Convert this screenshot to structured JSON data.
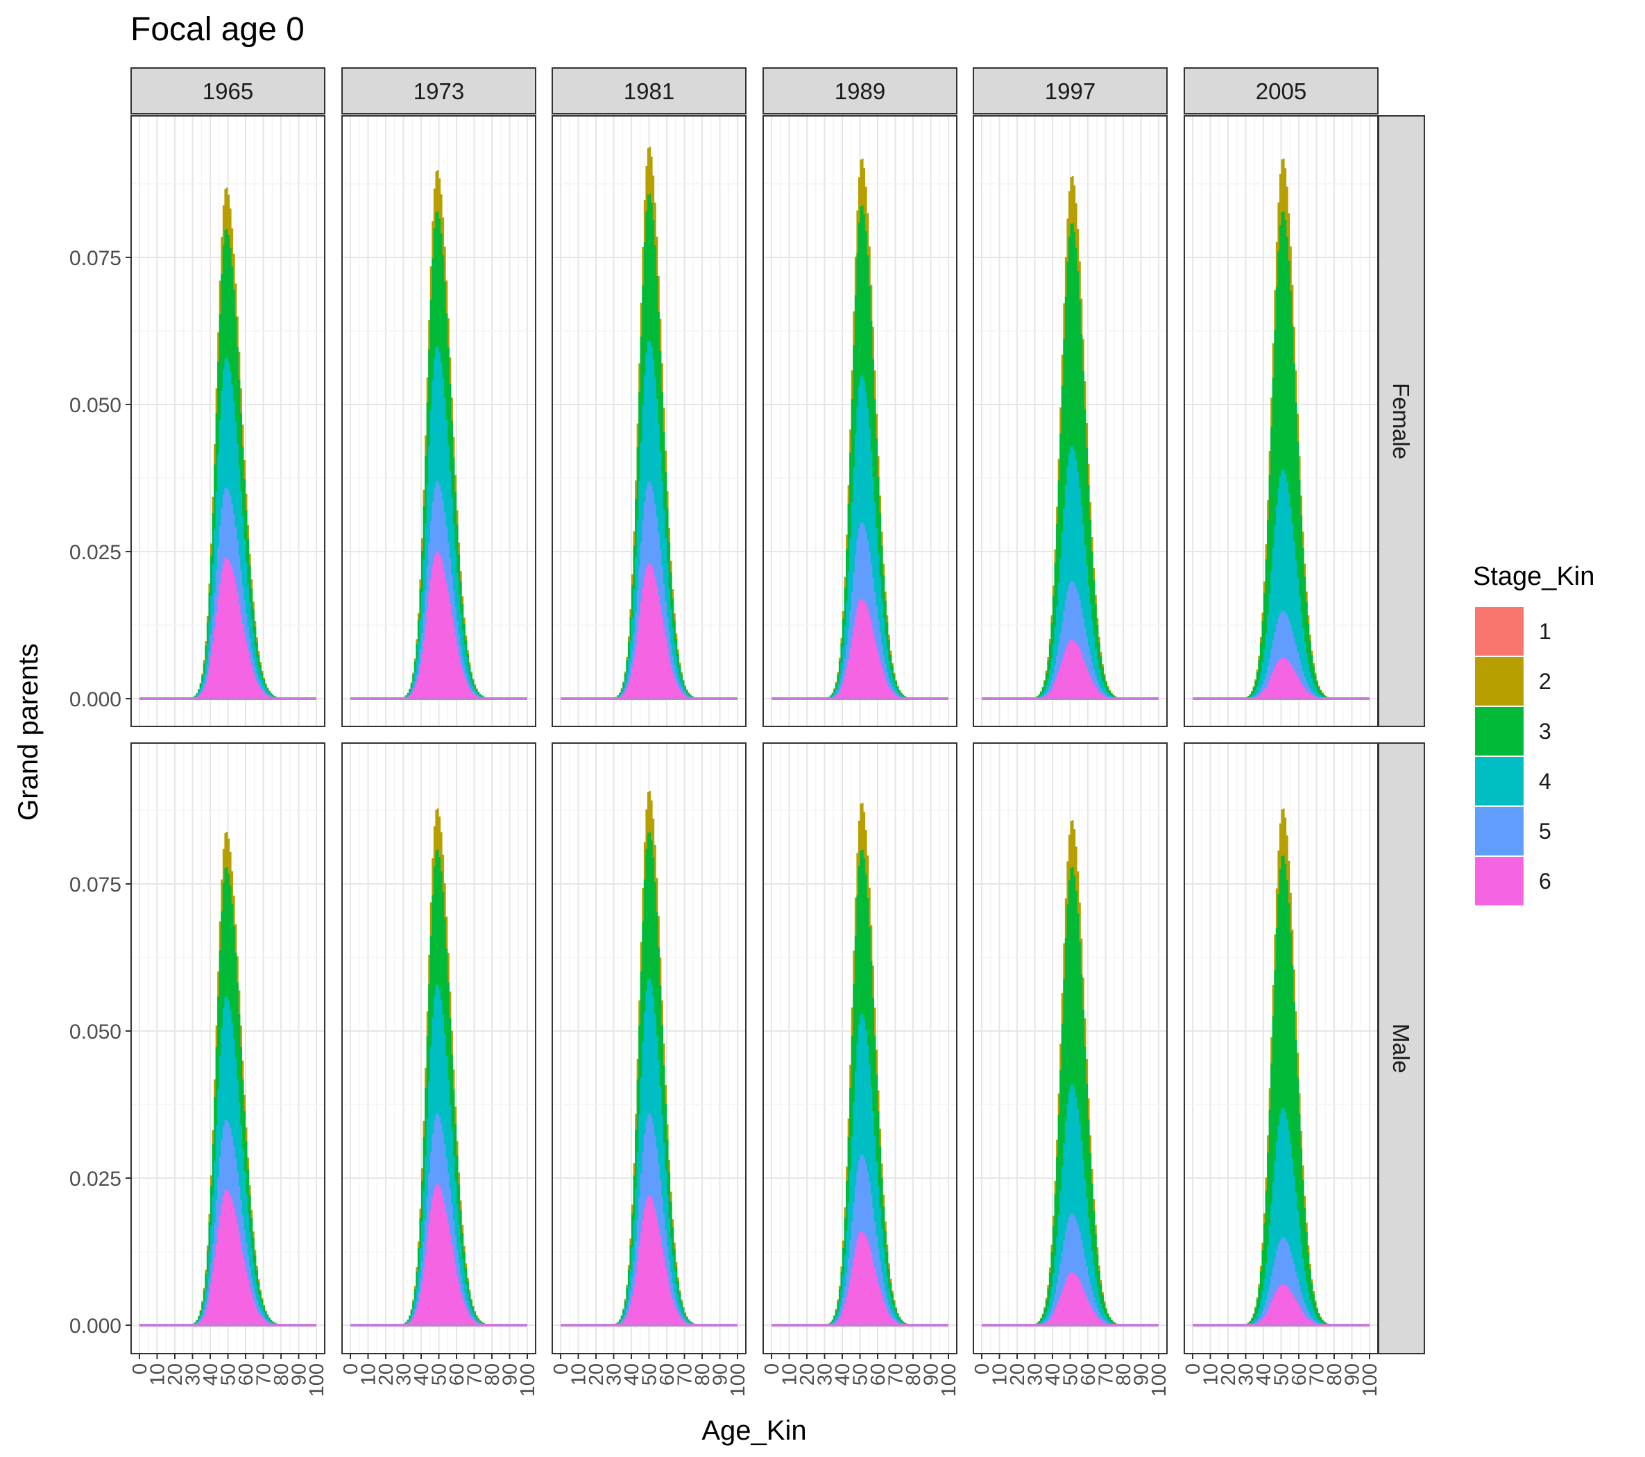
{
  "chart_data": {
    "type": "area",
    "title": "Focal age 0",
    "xlabel": "Age_Kin",
    "ylabel": "Grand parents",
    "xlim": [
      0,
      100
    ],
    "ylim": [
      0,
      0.095
    ],
    "x_ticks": [
      0,
      10,
      20,
      30,
      40,
      50,
      60,
      70,
      80,
      90,
      100
    ],
    "y_ticks": [
      0.0,
      0.025,
      0.05,
      0.075
    ],
    "y_tick_labels": [
      "0.000",
      "0.025",
      "0.050",
      "0.075"
    ],
    "grid": true,
    "stacked": true,
    "legend": {
      "title": "Stage_Kin",
      "position": "right",
      "entries": [
        "1",
        "2",
        "3",
        "4",
        "5",
        "6"
      ]
    },
    "colors": {
      "1": "#F8766D",
      "2": "#B79F00",
      "3": "#00BA38",
      "4": "#00BFC4",
      "5": "#619CFF",
      "6": "#F564E3"
    },
    "facet_cols": [
      "1965",
      "1973",
      "1981",
      "1989",
      "1997",
      "2005"
    ],
    "facet_rows": [
      "Female",
      "Male"
    ],
    "panels": [
      {
        "year": "1965",
        "sex": "Female",
        "peak_age": 49,
        "sd_left": 5.5,
        "sd_right": 8.5,
        "cum": [
          0.024,
          0.036,
          0.058,
          0.08,
          0.087
        ]
      },
      {
        "year": "1973",
        "sex": "Female",
        "peak_age": 49,
        "sd_left": 5.5,
        "sd_right": 8.0,
        "cum": [
          0.025,
          0.037,
          0.06,
          0.083,
          0.09
        ]
      },
      {
        "year": "1981",
        "sex": "Female",
        "peak_age": 50,
        "sd_left": 5.5,
        "sd_right": 7.5,
        "cum": [
          0.023,
          0.037,
          0.061,
          0.086,
          0.094
        ]
      },
      {
        "year": "1989",
        "sex": "Female",
        "peak_age": 51,
        "sd_left": 5.5,
        "sd_right": 7.5,
        "cum": [
          0.017,
          0.03,
          0.055,
          0.084,
          0.092
        ]
      },
      {
        "year": "1997",
        "sex": "Female",
        "peak_age": 51,
        "sd_left": 6.0,
        "sd_right": 7.5,
        "cum": [
          0.01,
          0.02,
          0.043,
          0.081,
          0.089
        ]
      },
      {
        "year": "2005",
        "sex": "Female",
        "peak_age": 51,
        "sd_left": 6.0,
        "sd_right": 7.5,
        "cum": [
          0.007,
          0.015,
          0.039,
          0.083,
          0.092
        ]
      },
      {
        "year": "1965",
        "sex": "Male",
        "peak_age": 49,
        "sd_left": 5.5,
        "sd_right": 8.5,
        "cum": [
          0.023,
          0.035,
          0.056,
          0.078,
          0.084
        ]
      },
      {
        "year": "1973",
        "sex": "Male",
        "peak_age": 49,
        "sd_left": 5.5,
        "sd_right": 8.0,
        "cum": [
          0.024,
          0.036,
          0.058,
          0.081,
          0.088
        ]
      },
      {
        "year": "1981",
        "sex": "Male",
        "peak_age": 50,
        "sd_left": 5.5,
        "sd_right": 7.5,
        "cum": [
          0.022,
          0.036,
          0.059,
          0.084,
          0.091
        ]
      },
      {
        "year": "1989",
        "sex": "Male",
        "peak_age": 51,
        "sd_left": 5.5,
        "sd_right": 7.5,
        "cum": [
          0.016,
          0.029,
          0.053,
          0.081,
          0.089
        ]
      },
      {
        "year": "1997",
        "sex": "Male",
        "peak_age": 51,
        "sd_left": 6.0,
        "sd_right": 7.5,
        "cum": [
          0.009,
          0.019,
          0.041,
          0.078,
          0.086
        ]
      },
      {
        "year": "2005",
        "sex": "Male",
        "peak_age": 51,
        "sd_left": 6.0,
        "sd_right": 7.5,
        "cum": [
          0.007,
          0.015,
          0.037,
          0.08,
          0.088
        ]
      }
    ]
  }
}
